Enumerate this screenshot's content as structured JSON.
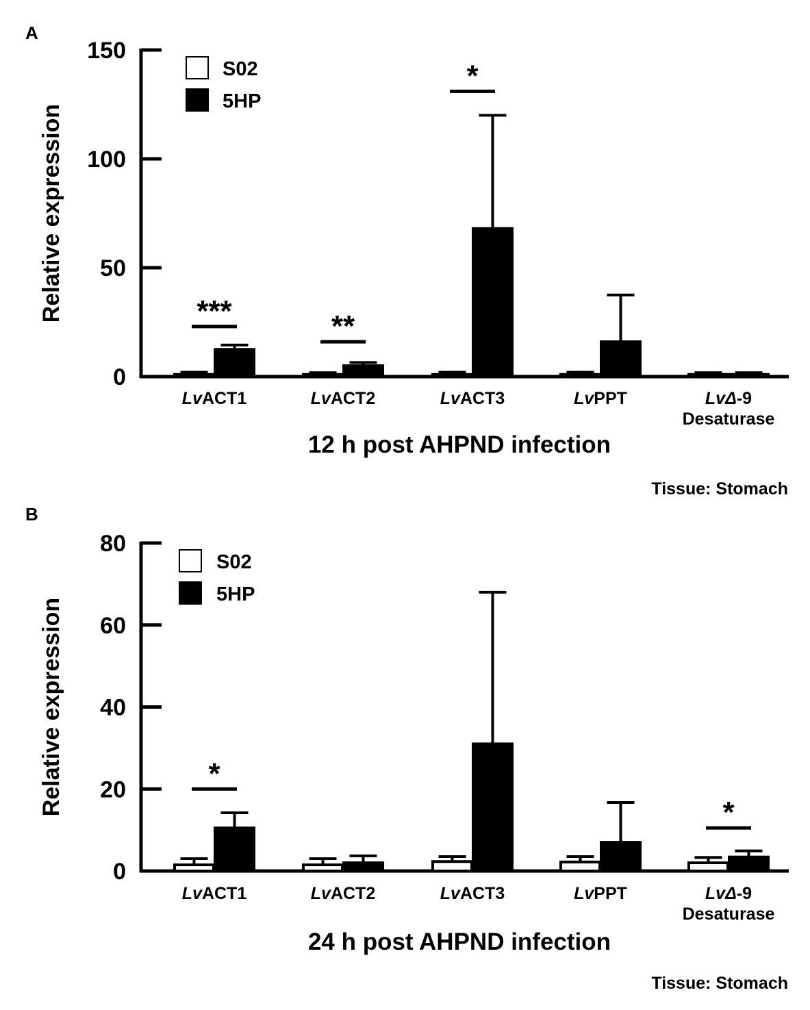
{
  "figure": {
    "tissue_label": "Tissue: Stomach"
  },
  "chart_data": [
    {
      "panel": "A",
      "type": "bar",
      "title": "",
      "xlabel": "12 h post AHPND infection",
      "ylabel": "Relative expression",
      "ylim": [
        0,
        150
      ],
      "yticks": [
        0,
        50,
        100,
        150
      ],
      "ytick_labels": [
        "0",
        "50",
        "100",
        "150"
      ],
      "grid": false,
      "legend_position": "top-left",
      "categories": [
        {
          "prefix": "Lv",
          "name": "ACT1",
          "line2": ""
        },
        {
          "prefix": "Lv",
          "name": "ACT2",
          "line2": ""
        },
        {
          "prefix": "Lv",
          "name": "ACT3",
          "line2": ""
        },
        {
          "prefix": "Lv",
          "name": "PPT",
          "line2": ""
        },
        {
          "prefix": "LvΔ",
          "name": "-9",
          "line2": "Desaturase"
        }
      ],
      "series": [
        {
          "name": "S02",
          "fill": "#ffffff",
          "values": [
            1,
            1,
            1,
            1,
            1
          ],
          "errors": [
            1,
            0.8,
            1,
            1,
            0.8
          ]
        },
        {
          "name": "5HP",
          "fill": "#000000",
          "values": [
            12.5,
            5,
            68,
            16,
            1
          ],
          "errors": [
            2,
            1.5,
            52,
            21.5,
            0.8
          ]
        }
      ],
      "significance": [
        {
          "category": 0,
          "label": "***",
          "y": 23
        },
        {
          "category": 1,
          "label": "**",
          "y": 16
        },
        {
          "category": 2,
          "label": "*",
          "y": 131
        }
      ]
    },
    {
      "panel": "B",
      "type": "bar",
      "title": "",
      "xlabel": "24 h post AHPND infection",
      "ylabel": "Relative expression",
      "ylim": [
        0,
        80
      ],
      "yticks": [
        0,
        20,
        40,
        60,
        80
      ],
      "ytick_labels": [
        "0",
        "20",
        "40",
        "60",
        "80"
      ],
      "grid": false,
      "legend_position": "top-left",
      "categories": [
        {
          "prefix": "Lv",
          "name": "ACT1",
          "line2": ""
        },
        {
          "prefix": "Lv",
          "name": "ACT2",
          "line2": ""
        },
        {
          "prefix": "Lv",
          "name": "ACT3",
          "line2": ""
        },
        {
          "prefix": "Lv",
          "name": "PPT",
          "line2": ""
        },
        {
          "prefix": "LvΔ",
          "name": "-9",
          "line2": "Desaturase"
        }
      ],
      "series": [
        {
          "name": "S02",
          "fill": "#ffffff",
          "values": [
            1.5,
            1.5,
            2.3,
            2.2,
            2
          ],
          "errors": [
            1.5,
            1.5,
            1.2,
            1.3,
            1.3
          ]
        },
        {
          "name": "5HP",
          "fill": "#000000",
          "values": [
            10.5,
            2,
            31,
            7,
            3.4
          ],
          "errors": [
            3.7,
            1.7,
            37,
            9.7,
            1.5
          ]
        }
      ],
      "significance": [
        {
          "category": 0,
          "label": "*",
          "y": 20
        },
        {
          "category": 4,
          "label": "*",
          "y": 10.5
        }
      ]
    }
  ]
}
